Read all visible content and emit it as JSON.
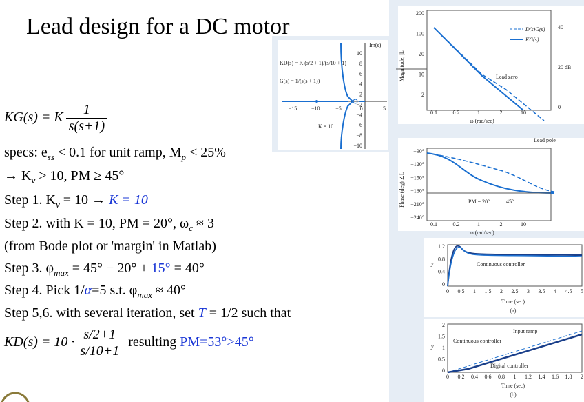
{
  "title": "Lead design for a DC motor",
  "plant": {
    "lhs": "KG(s) = K",
    "num": "1",
    "den": "s(s+1)"
  },
  "lines": [
    [
      "specs: e",
      "ss",
      " < 0.1 for unit ramp, M",
      "p",
      " < 25%"
    ],
    [
      "→ K",
      "v",
      " > 10, PM ≥ 45°"
    ],
    [
      "Step 1. K",
      "v",
      " = 10 → ",
      "K = 10"
    ],
    [
      "Step 2. with K = 10,  PM = 20°,  ω",
      "c",
      " ≈ 3"
    ],
    [
      "(from Bode plot or 'margin' in Matlab)"
    ],
    [
      "Step 3. φ",
      "max",
      " = 45° − 20° + ",
      "15°",
      " = 40°"
    ],
    [
      "Step 4. Pick 1/",
      "α",
      "=5 s.t. φ",
      "max",
      " ≈ 40°"
    ],
    [
      "Step 5,6. with several iteration, set ",
      "T",
      " = 1/2 such that"
    ]
  ],
  "controller": {
    "lhs": "KD(s) = 10 ·",
    "num": "s/2+1",
    "den": "s/10+1",
    "result": "resulting ",
    "pm": "PM=53°>45°"
  },
  "root_locus": {
    "axis_label": "Im(s)",
    "kd": "KD(s) = K (s/2 + 1)/(s/10 + 1)",
    "g": "G(s) = 1/(s(s + 1))",
    "gain": "K = 10",
    "xticks": [
      "−15",
      "−10",
      "−5",
      "0",
      "5"
    ],
    "yticks": [
      "10",
      "8",
      "6",
      "4",
      "2",
      "−2",
      "−4",
      "−6",
      "−8",
      "−10"
    ]
  },
  "bode": {
    "mag_label": "Magnitude, |L|",
    "mag_ticks": [
      "200",
      "100",
      "20",
      "10",
      "2"
    ],
    "db_ticks": [
      "40",
      "20 dB",
      "0"
    ],
    "legend": [
      "D(s)G(s)",
      "KG(s)"
    ],
    "lead_zero": "Lead zero",
    "lead_pole": "Lead pole",
    "freq_ticks": [
      "0.1",
      "0.2",
      "1",
      "2",
      "10"
    ],
    "freq_label": "ω (rad/sec)",
    "phase_label": "Phase (deg) ∠L",
    "phase_ticks": [
      "−90°",
      "−120°",
      "−150°",
      "−180°",
      "−210°",
      "−240°"
    ],
    "pm": "PM = 20°",
    "pm2": "45°"
  },
  "step_a": {
    "y": "y",
    "yticks": [
      "1.2",
      "0.8",
      "0.4",
      "0"
    ],
    "xticks": [
      "0",
      "0.5",
      "1",
      "1.5",
      "2",
      "2.5",
      "3",
      "3.5",
      "4",
      "4.5",
      "5"
    ],
    "legend": "Continuous controller",
    "xlabel": "Time (sec)",
    "caption": "(a)"
  },
  "step_b": {
    "y": "y",
    "yticks": [
      "2",
      "1.5",
      "1",
      "0.5",
      "0"
    ],
    "xticks": [
      "0",
      "0.2",
      "0.4",
      "0.6",
      "0.8",
      "1",
      "1.2",
      "1.4",
      "1.6",
      "1.8",
      "2"
    ],
    "input": "Input ramp",
    "continuous": "Continuous controller",
    "digital": "Digital controller",
    "xlabel": "Time (sec)",
    "caption": "(b)"
  }
}
